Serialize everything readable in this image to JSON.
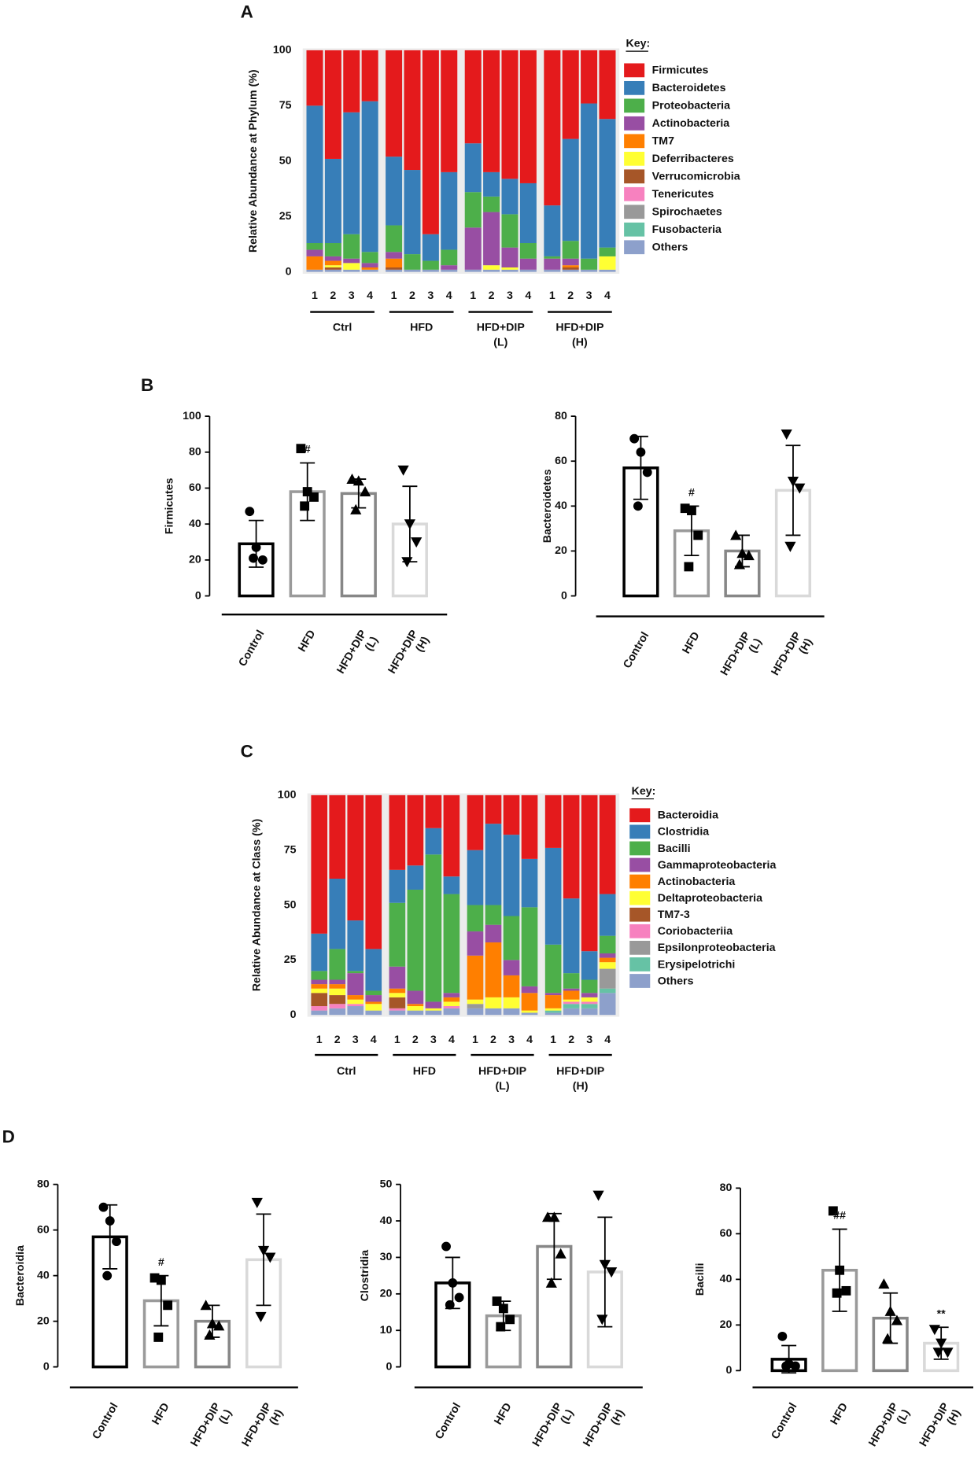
{
  "panel_labels": [
    "A",
    "B",
    "C",
    "D"
  ],
  "chart_data": [
    {
      "type": "stacked_bar",
      "ylabel": "Relative Abundance at Phylum (%)",
      "legend_title": "Key:",
      "categories": [
        "1",
        "2",
        "3",
        "4",
        "1",
        "2",
        "3",
        "4",
        "1",
        "2",
        "3",
        "4",
        "1",
        "2",
        "3",
        "4"
      ],
      "groups": [
        [
          "Ctrl"
        ],
        [
          "HFD"
        ],
        [
          "HFD+DIP",
          "(L)"
        ],
        [
          "HFD+DIP",
          "(H)"
        ]
      ],
      "ylim": [
        0,
        100
      ],
      "yticks": [
        0,
        25,
        50,
        75,
        100
      ],
      "series": [
        {
          "name": "Firmicutes",
          "color": "#e41a1c",
          "values": [
            25,
            49,
            28,
            23,
            48,
            54,
            83,
            55,
            42,
            55,
            58,
            60,
            70,
            40,
            24,
            31
          ]
        },
        {
          "name": "Bacteroidetes",
          "color": "#377eb8",
          "values": [
            62,
            38,
            55,
            68,
            31,
            38,
            12,
            35,
            22,
            11,
            16,
            27,
            23,
            46,
            70,
            58
          ]
        },
        {
          "name": "Proteobacteria",
          "color": "#4daf4a",
          "values": [
            3,
            6,
            11,
            5,
            12,
            7,
            4,
            7,
            16,
            7,
            15,
            7,
            1,
            8,
            5,
            4
          ]
        },
        {
          "name": "Actinobacteria",
          "color": "#984ea3",
          "values": [
            3,
            2,
            2,
            2,
            3,
            0,
            0,
            2,
            19,
            24,
            9,
            5,
            5,
            3,
            0,
            0
          ]
        },
        {
          "name": "TM7",
          "color": "#ff7f00",
          "values": [
            6,
            2,
            0,
            1,
            4,
            0,
            0,
            0,
            0,
            0,
            0,
            0,
            0,
            1,
            0,
            0
          ]
        },
        {
          "name": "Deferribacteres",
          "color": "#ffff33",
          "values": [
            0,
            1,
            3,
            0,
            0,
            0,
            0,
            0,
            0,
            2,
            1,
            0,
            0,
            0,
            0,
            6
          ]
        },
        {
          "name": "Verrucomicrobia",
          "color": "#a65628",
          "values": [
            0,
            1,
            0,
            0,
            1,
            0,
            0,
            0,
            0,
            0,
            0,
            0,
            0,
            1,
            0,
            0
          ]
        },
        {
          "name": "Tenericutes",
          "color": "#f781bf",
          "values": [
            0,
            0,
            0,
            0,
            0,
            0,
            0,
            0,
            0,
            0,
            0,
            0,
            0,
            0,
            0,
            0
          ]
        },
        {
          "name": "Spirochaetes",
          "color": "#999999",
          "values": [
            0,
            0,
            0,
            0,
            0,
            0,
            0,
            0,
            0,
            0,
            0,
            0,
            0,
            0,
            0,
            0
          ]
        },
        {
          "name": "Fusobacteria",
          "color": "#66c2a5",
          "values": [
            0,
            0,
            0,
            0,
            0,
            0,
            0,
            0,
            0,
            0,
            0,
            0,
            0,
            0,
            0,
            0
          ]
        },
        {
          "name": "Others",
          "color": "#8da0cb",
          "values": [
            1,
            1,
            1,
            1,
            1,
            1,
            1,
            1,
            1,
            1,
            1,
            1,
            1,
            1,
            1,
            1
          ]
        }
      ]
    },
    {
      "type": "bar",
      "ylabel": "Firmicutes",
      "categories": [
        [
          "Control"
        ],
        [
          "HFD"
        ],
        [
          "HFD+DIP",
          "(L)"
        ],
        [
          "HFD+DIP",
          "(H)"
        ]
      ],
      "values": [
        29,
        58,
        57,
        40
      ],
      "errors": [
        13,
        16,
        8,
        21
      ],
      "points": [
        [
          47,
          27,
          20,
          21
        ],
        [
          82,
          58,
          55,
          50
        ],
        [
          65,
          64,
          58,
          48
        ],
        [
          70,
          40,
          30,
          19
        ]
      ],
      "annotations": [
        null,
        "#",
        null,
        null
      ],
      "colors": [
        "#000000",
        "#9a9a9a",
        "#878787",
        "#d9d9d9"
      ],
      "markers": [
        "circle",
        "square",
        "triangle-up",
        "triangle-down"
      ],
      "ylim": [
        0,
        100
      ],
      "yticks": [
        0,
        20,
        40,
        60,
        80,
        100
      ]
    },
    {
      "type": "bar",
      "ylabel": "Bacteroidetes",
      "categories": [
        [
          "Control"
        ],
        [
          "HFD"
        ],
        [
          "HFD+DIP",
          "(L)"
        ],
        [
          "HFD+DIP",
          "(H)"
        ]
      ],
      "values": [
        57,
        29,
        20,
        47
      ],
      "errors": [
        14,
        11,
        7,
        20
      ],
      "points": [
        [
          70,
          64,
          55,
          40
        ],
        [
          39,
          38,
          27,
          13
        ],
        [
          27,
          19,
          18,
          14
        ],
        [
          72,
          51,
          48,
          22
        ]
      ],
      "annotations": [
        null,
        "#",
        null,
        null
      ],
      "colors": [
        "#000000",
        "#9a9a9a",
        "#878787",
        "#d9d9d9"
      ],
      "markers": [
        "circle",
        "square",
        "triangle-up",
        "triangle-down"
      ],
      "ylim": [
        0,
        80
      ],
      "yticks": [
        0,
        20,
        40,
        60,
        80
      ]
    },
    {
      "type": "stacked_bar",
      "ylabel": "Relative Abundance at Class (%)",
      "legend_title": "Key:",
      "categories": [
        "1",
        "2",
        "3",
        "4",
        "1",
        "2",
        "3",
        "4",
        "1",
        "2",
        "3",
        "4",
        "1",
        "2",
        "3",
        "4"
      ],
      "groups": [
        [
          "Ctrl"
        ],
        [
          "HFD"
        ],
        [
          "HFD+DIP",
          "(L)"
        ],
        [
          "HFD+DIP",
          "(H)"
        ]
      ],
      "ylim": [
        0,
        100
      ],
      "yticks": [
        0,
        25,
        50,
        75,
        100
      ],
      "series": [
        {
          "name": "Bacteroidia",
          "color": "#e41a1c",
          "values": [
            63,
            38,
            57,
            70,
            34,
            32,
            15,
            37,
            25,
            13,
            18,
            29,
            24,
            47,
            71,
            45
          ]
        },
        {
          "name": "Clostridia",
          "color": "#377eb8",
          "values": [
            17,
            32,
            23,
            19,
            15,
            11,
            12,
            8,
            25,
            37,
            37,
            22,
            44,
            34,
            13,
            19
          ]
        },
        {
          "name": "Bacilli",
          "color": "#4daf4a",
          "values": [
            4,
            14,
            1,
            2,
            29,
            46,
            67,
            45,
            12,
            9,
            20,
            36,
            22,
            7,
            6,
            8
          ]
        },
        {
          "name": "Gammaproteobacteria",
          "color": "#984ea3",
          "values": [
            2,
            2,
            10,
            3,
            10,
            6,
            3,
            2,
            11,
            8,
            7,
            3,
            1,
            1,
            2,
            2
          ]
        },
        {
          "name": "Actinobacteria",
          "color": "#ff7f00",
          "values": [
            2,
            2,
            2,
            1,
            2,
            1,
            0,
            2,
            20,
            25,
            10,
            8,
            6,
            4,
            0,
            2
          ]
        },
        {
          "name": "Deltaproteobacteria",
          "color": "#ffff33",
          "values": [
            2,
            3,
            2,
            3,
            2,
            2,
            1,
            2,
            2,
            5,
            5,
            1,
            1,
            1,
            2,
            3
          ]
        },
        {
          "name": "TM7-3",
          "color": "#a65628",
          "values": [
            6,
            4,
            0,
            0,
            5,
            0,
            0,
            0,
            0,
            0,
            0,
            0,
            0,
            0,
            0,
            0
          ]
        },
        {
          "name": "Coriobacteriia",
          "color": "#f781bf",
          "values": [
            2,
            2,
            1,
            0,
            1,
            0,
            0,
            1,
            0,
            0,
            0,
            0,
            0,
            1,
            1,
            0
          ]
        },
        {
          "name": "Epsilonproteobacteria",
          "color": "#999999",
          "values": [
            0,
            0,
            0,
            0,
            0,
            0,
            0,
            0,
            2,
            0,
            0,
            0,
            0,
            0,
            0,
            9
          ]
        },
        {
          "name": "Erysipelotrichi",
          "color": "#66c2a5",
          "values": [
            0,
            0,
            0,
            0,
            0,
            0,
            0,
            0,
            0,
            0,
            0,
            0,
            1,
            2,
            2,
            2
          ]
        },
        {
          "name": "Others",
          "color": "#8da0cb",
          "values": [
            2,
            3,
            4,
            2,
            2,
            2,
            2,
            3,
            3,
            3,
            3,
            1,
            1,
            3,
            3,
            10
          ]
        }
      ]
    },
    {
      "type": "bar",
      "ylabel": "Bacteroidia",
      "categories": [
        [
          "Control"
        ],
        [
          "HFD"
        ],
        [
          "HFD+DIP",
          "(L)"
        ],
        [
          "HFD+DIP",
          "(H)"
        ]
      ],
      "values": [
        57,
        29,
        20,
        47
      ],
      "errors": [
        14,
        11,
        7,
        20
      ],
      "points": [
        [
          70,
          64,
          55,
          40
        ],
        [
          39,
          38,
          27,
          13
        ],
        [
          27,
          19,
          18,
          14
        ],
        [
          72,
          51,
          48,
          22
        ]
      ],
      "annotations": [
        null,
        "#",
        null,
        null
      ],
      "colors": [
        "#000000",
        "#9a9a9a",
        "#878787",
        "#d9d9d9"
      ],
      "markers": [
        "circle",
        "square",
        "triangle-up",
        "triangle-down"
      ],
      "ylim": [
        0,
        80
      ],
      "yticks": [
        0,
        20,
        40,
        60,
        80
      ]
    },
    {
      "type": "bar",
      "ylabel": "Clostridia",
      "categories": [
        [
          "Control"
        ],
        [
          "HFD"
        ],
        [
          "HFD+DIP",
          "(L)"
        ],
        [
          "HFD+DIP",
          "(H)"
        ]
      ],
      "values": [
        23,
        14,
        33,
        26
      ],
      "errors": [
        7,
        4,
        9,
        15
      ],
      "points": [
        [
          33,
          23,
          19,
          17
        ],
        [
          18,
          16,
          13,
          11
        ],
        [
          41,
          41,
          31,
          23
        ],
        [
          47,
          28,
          26,
          13
        ]
      ],
      "annotations": [
        null,
        null,
        null,
        null
      ],
      "colors": [
        "#000000",
        "#9a9a9a",
        "#878787",
        "#d9d9d9"
      ],
      "markers": [
        "circle",
        "square",
        "triangle-up",
        "triangle-down"
      ],
      "ylim": [
        0,
        50
      ],
      "yticks": [
        0,
        10,
        20,
        30,
        40,
        50
      ]
    },
    {
      "type": "bar",
      "ylabel": "Bacilli",
      "categories": [
        [
          "Control"
        ],
        [
          "HFD"
        ],
        [
          "HFD+DIP",
          "(L)"
        ],
        [
          "HFD+DIP",
          "(H)"
        ]
      ],
      "values": [
        5,
        44,
        23,
        12
      ],
      "errors": [
        6,
        18,
        11,
        7
      ],
      "points": [
        [
          15,
          3,
          2,
          2
        ],
        [
          70,
          44,
          35,
          34
        ],
        [
          38,
          26,
          22,
          14
        ],
        [
          18,
          12,
          8,
          8
        ]
      ],
      "annotations": [
        null,
        "##",
        null,
        "**"
      ],
      "colors": [
        "#000000",
        "#9a9a9a",
        "#878787",
        "#d9d9d9"
      ],
      "markers": [
        "circle",
        "square",
        "triangle-up",
        "triangle-down"
      ],
      "ylim": [
        0,
        80
      ],
      "yticks": [
        0,
        20,
        40,
        60,
        80
      ]
    }
  ]
}
